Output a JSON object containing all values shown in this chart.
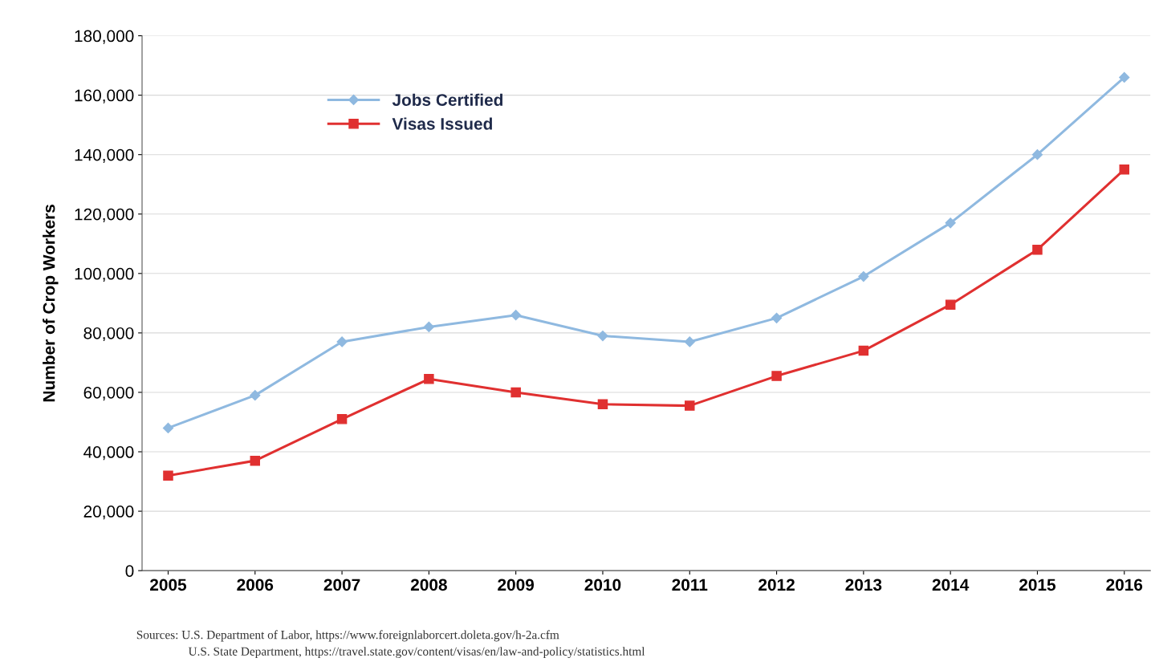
{
  "chart_data": {
    "type": "line",
    "ylabel": "Number of Crop Workers",
    "categories": [
      "2005",
      "2006",
      "2007",
      "2008",
      "2009",
      "2010",
      "2011",
      "2012",
      "2013",
      "2014",
      "2015",
      "2016"
    ],
    "series": [
      {
        "name": "Jobs Certified",
        "color": "#8fb9e0",
        "marker": "diamond",
        "values": [
          48000,
          59000,
          77000,
          82000,
          86000,
          79000,
          77000,
          85000,
          99000,
          117000,
          140000,
          166000
        ]
      },
      {
        "name": "Visas Issued",
        "color": "#e03030",
        "marker": "square",
        "values": [
          32000,
          37000,
          51000,
          64500,
          60000,
          56000,
          55500,
          65500,
          74000,
          89500,
          108000,
          135000
        ]
      }
    ],
    "ylim": [
      0,
      180000
    ],
    "yticks": [
      {
        "value": 0,
        "label": "0"
      },
      {
        "value": 20000,
        "label": "20,000"
      },
      {
        "value": 40000,
        "label": "40,000"
      },
      {
        "value": 60000,
        "label": "60,000"
      },
      {
        "value": 80000,
        "label": "80,000"
      },
      {
        "value": 100000,
        "label": "100,000"
      },
      {
        "value": 120000,
        "label": "120,000"
      },
      {
        "value": 140000,
        "label": "140,000"
      },
      {
        "value": 160000,
        "label": "160,000"
      },
      {
        "value": 180000,
        "label": "180,000"
      }
    ],
    "grid": "y",
    "legend": "top left",
    "line_style": "solid",
    "annotations": [
      "Sources: U.S. Department of Labor, https://www.foreignlaborcert.doleta.gov/h-2a.cfm",
      "U.S. State Department, https://travel.state.gov/content/visas/en/law-and-policy/statistics.html"
    ]
  }
}
